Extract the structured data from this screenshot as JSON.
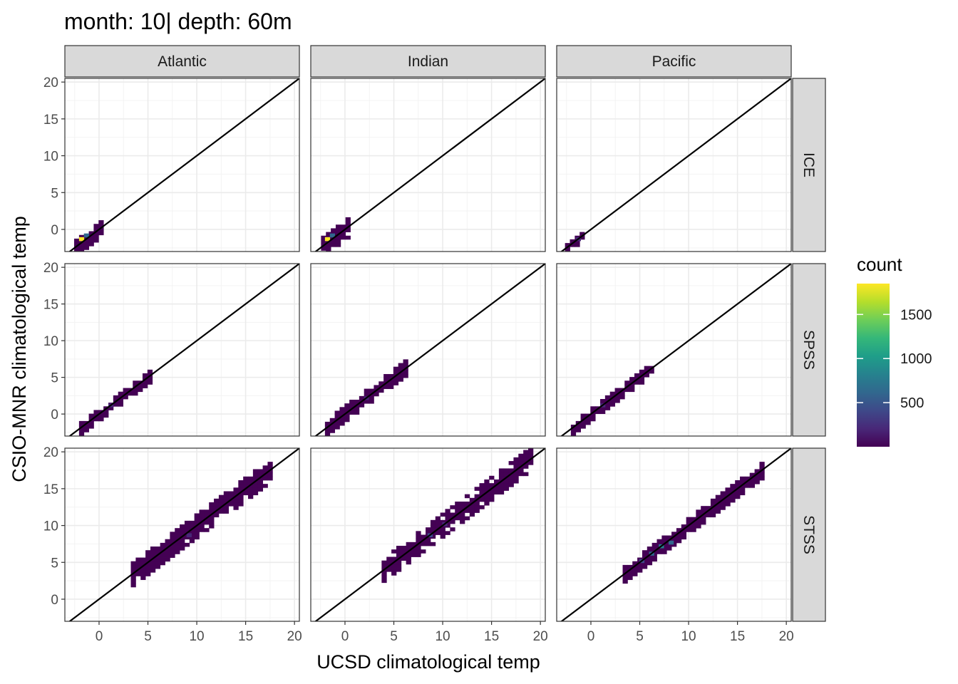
{
  "chart_data": {
    "type": "heatmap",
    "title": "month: 10| depth: 60m",
    "xlabel": "UCSD climatological temp",
    "ylabel": "CSIO-MNR climatological temp",
    "col_facets": [
      "Atlantic",
      "Indian",
      "Pacific"
    ],
    "row_facets": [
      "ICE",
      "SPSS",
      "STSS"
    ],
    "facet_ranges": {
      "ICE": {
        "xlim": [
          -3.5,
          20.5
        ],
        "ylim": [
          -3,
          20.5
        ],
        "yticks": [
          0,
          5,
          10,
          15,
          20
        ]
      },
      "SPSS": {
        "xlim": [
          -3.5,
          20.5
        ],
        "ylim": [
          -3,
          20.5
        ],
        "yticks": [
          0,
          5,
          10,
          15,
          20
        ]
      },
      "STSS": {
        "xlim": [
          -3.5,
          20.5
        ],
        "ylim": [
          -3,
          20.5
        ],
        "yticks": [
          0,
          5,
          10,
          15,
          20
        ]
      }
    },
    "xticks": [
      0,
      5,
      10,
      15,
      20
    ],
    "reference_line": "y = x",
    "legend": {
      "title": "count",
      "breaks": [
        500,
        1000,
        1500
      ],
      "range": [
        0,
        1850
      ],
      "position": "right"
    },
    "colors": {
      "viridis": [
        "#440154",
        "#482878",
        "#3e4989",
        "#31688e",
        "#26828e",
        "#1f9e89",
        "#35b779",
        "#6ece58",
        "#b5de2b",
        "#fde725"
      ],
      "strip_fill": "#d9d9d9",
      "grid_major": "#ebebeb",
      "grid_minor": "#f3f3f3"
    },
    "bands": {
      "Atlantic|ICE": [
        [
          -2.2,
          -0.3,
          0.3,
          10
        ],
        [
          -2.3,
          0.6,
          1.2,
          14
        ]
      ],
      "Indian|ICE": [
        [
          -2.0,
          -0.8,
          0.3,
          8
        ],
        [
          -2.2,
          0.6,
          1.4,
          12
        ]
      ],
      "Pacific|ICE": [
        [
          -2.4,
          -0.5,
          0.7,
          12
        ]
      ],
      "Atlantic|SPSS": [
        [
          -1.8,
          5.2,
          0.9,
          35
        ]
      ],
      "Indian|SPSS": [
        [
          -1.8,
          6.5,
          1.0,
          35
        ]
      ],
      "Pacific|SPSS": [
        [
          -1.8,
          6.5,
          0.9,
          35
        ]
      ],
      "Atlantic|STSS": [
        [
          3.5,
          17.5,
          1.6,
          25
        ]
      ],
      "Indian|STSS": [
        [
          4.0,
          19.0,
          1.5,
          25
        ]
      ],
      "Pacific|STSS": [
        [
          3.5,
          17.5,
          1.1,
          35
        ]
      ]
    },
    "hot_spots": {
      "Atlantic|ICE": [
        [
          -1.8,
          -1.3,
          1850
        ],
        [
          -1.3,
          -0.8,
          700
        ]
      ],
      "Indian|ICE": [
        [
          -1.8,
          -1.3,
          1800
        ],
        [
          -1.3,
          -0.8,
          600
        ]
      ],
      "Pacific|ICE": [
        [
          -1.3,
          -1.3,
          250
        ]
      ],
      "Atlantic|SPSS": [
        [
          1.2,
          1.2,
          200
        ]
      ],
      "Indian|SPSS": [
        [
          2.2,
          2.2,
          250
        ]
      ],
      "Pacific|SPSS": [
        [
          1.2,
          1.2,
          200
        ]
      ],
      "Atlantic|STSS": [
        [
          9.2,
          8.7,
          250
        ]
      ],
      "Indian|STSS": [
        [
          8.7,
          8.7,
          350
        ],
        [
          10.2,
          10.2,
          300
        ]
      ],
      "Pacific|STSS": [
        [
          7.2,
          7.2,
          900
        ],
        [
          6.2,
          6.2,
          650
        ],
        [
          8.2,
          7.7,
          700
        ],
        [
          5.2,
          5.2,
          400
        ]
      ]
    }
  }
}
